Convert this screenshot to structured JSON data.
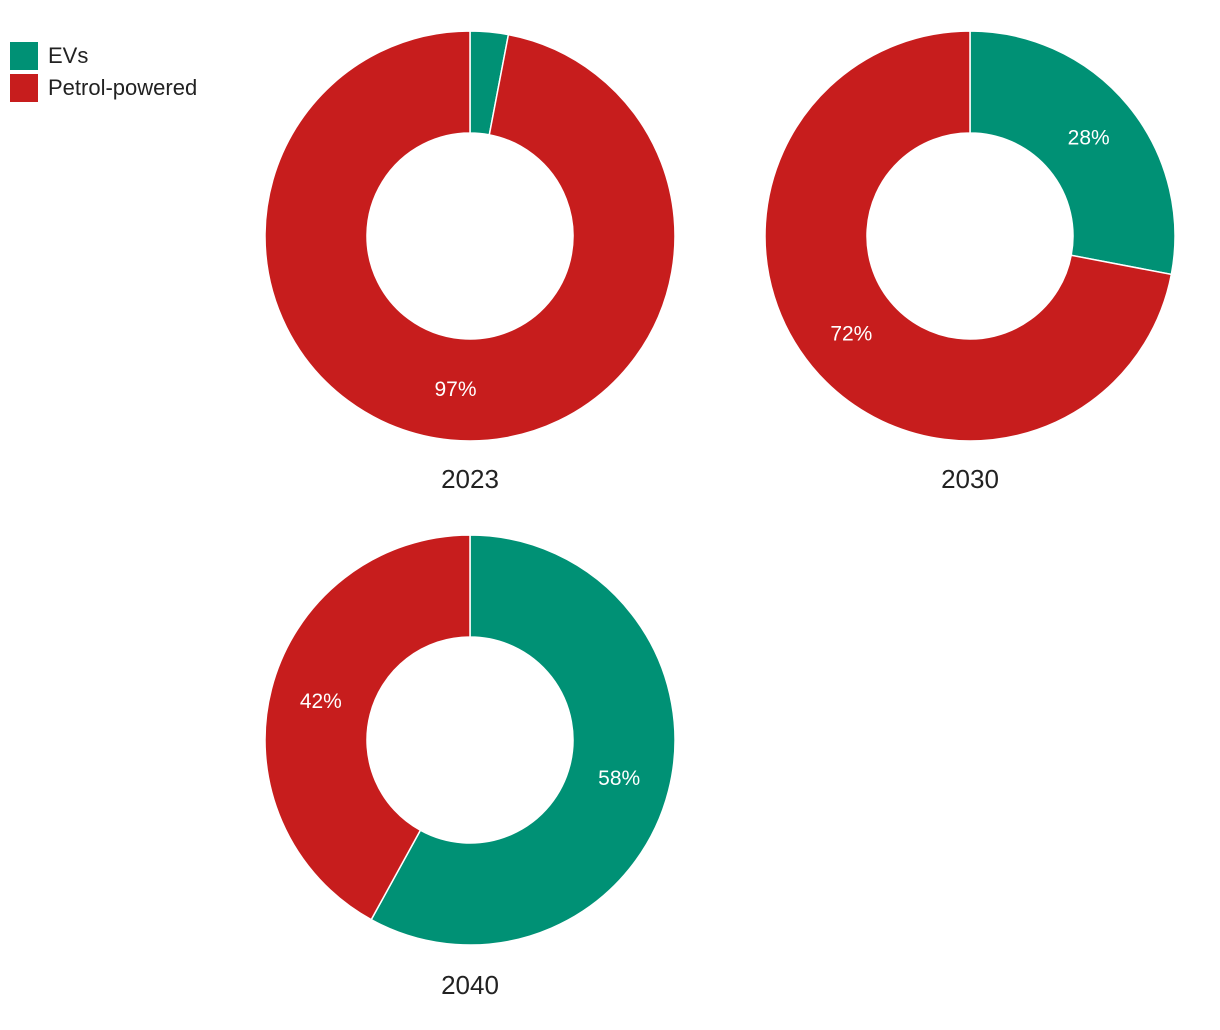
{
  "legend": {
    "items": [
      {
        "label": "EVs",
        "color": "#009175"
      },
      {
        "label": "Petrol-powered",
        "color": "#c71d1d"
      }
    ]
  },
  "chart_data": [
    {
      "type": "pie",
      "title": "2023",
      "categories": [
        "EVs",
        "Petrol-powered"
      ],
      "values": [
        3,
        97
      ],
      "labels": [
        "",
        "97%"
      ],
      "colors": [
        "#009175",
        "#c71d1d"
      ]
    },
    {
      "type": "pie",
      "title": "2030",
      "categories": [
        "EVs",
        "Petrol-powered"
      ],
      "values": [
        28,
        72
      ],
      "labels": [
        "28%",
        "72%"
      ],
      "colors": [
        "#009175",
        "#c71d1d"
      ]
    },
    {
      "type": "pie",
      "title": "2040",
      "categories": [
        "EVs",
        "Petrol-powered"
      ],
      "values": [
        58,
        42
      ],
      "labels": [
        "58%",
        "42%"
      ],
      "colors": [
        "#009175",
        "#c71d1d"
      ]
    }
  ]
}
